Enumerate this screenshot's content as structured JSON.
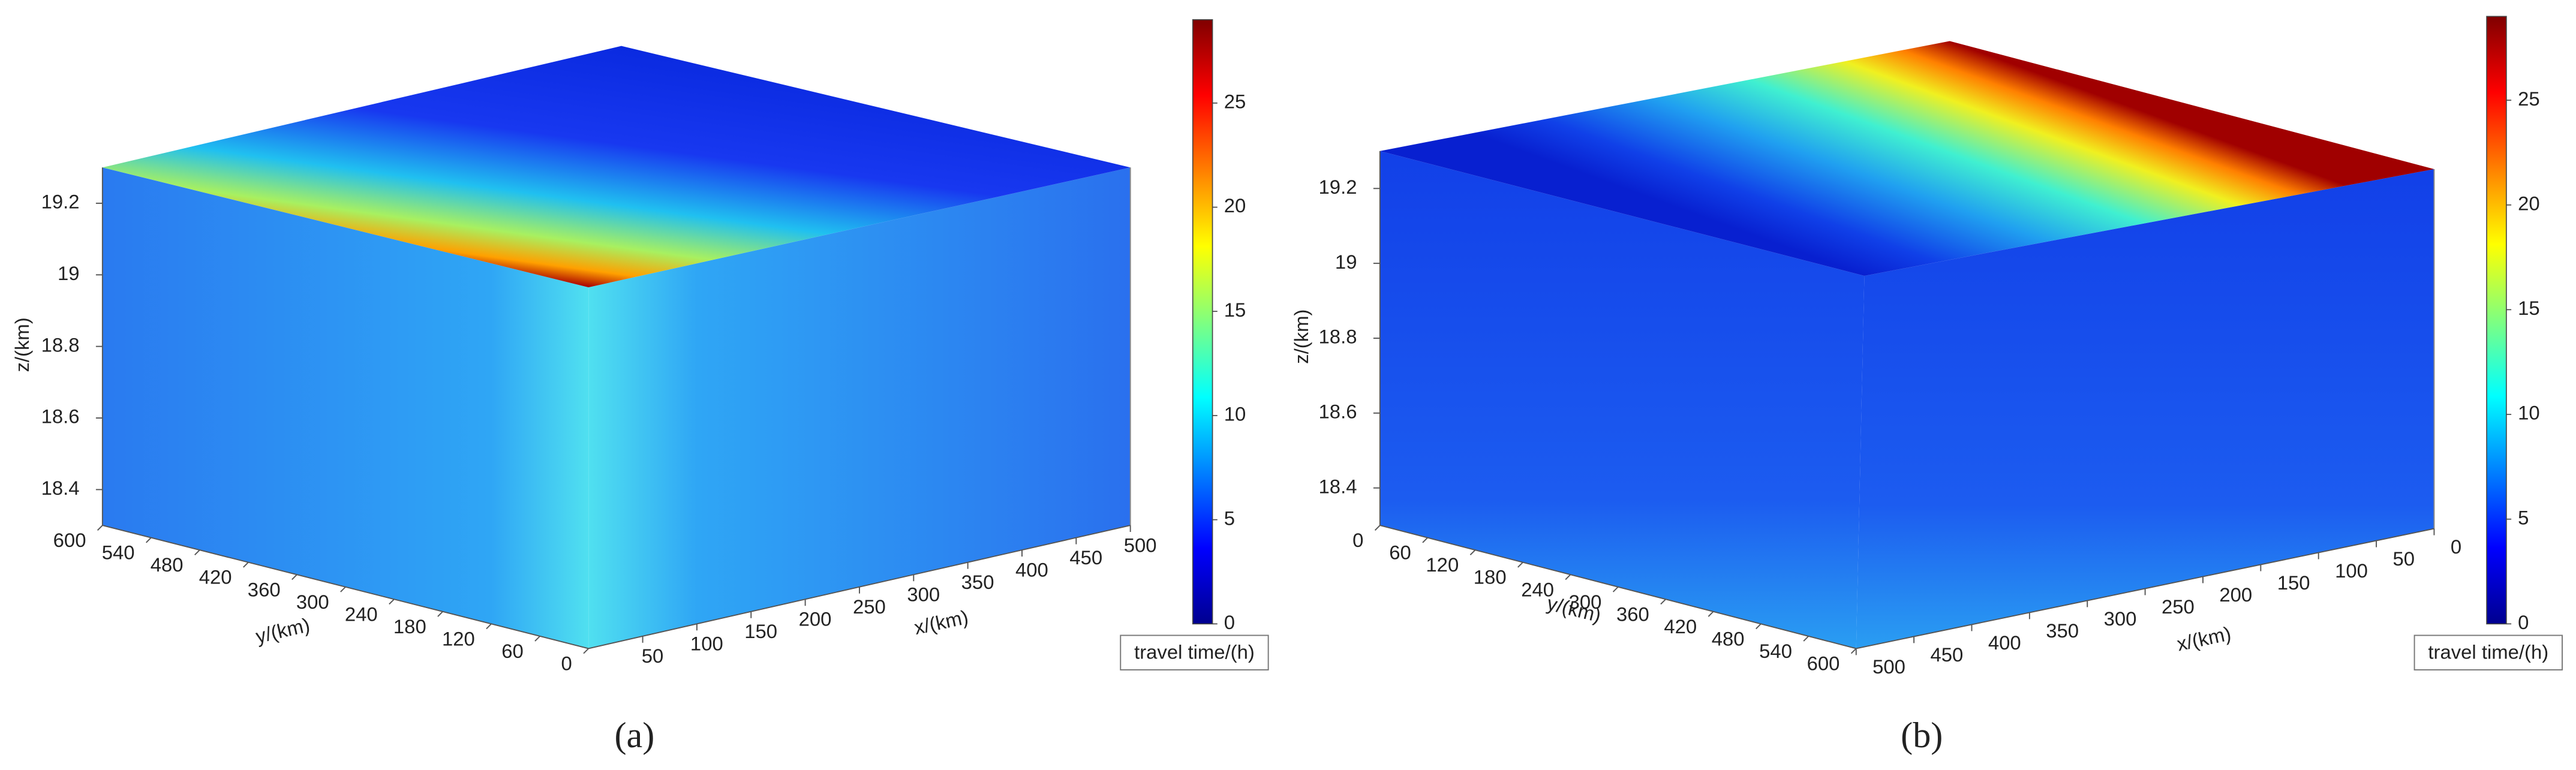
{
  "chart_data": [
    {
      "type": "surface3d",
      "title": "(a)",
      "xlabel": "x/(km)",
      "ylabel": "y/(km)",
      "zlabel": "z/(km)",
      "xlim": [
        0,
        500
      ],
      "xticks": [
        50,
        100,
        150,
        200,
        250,
        300,
        350,
        400,
        450,
        500
      ],
      "ylim": [
        0,
        600
      ],
      "yticks": [
        0,
        60,
        120,
        180,
        240,
        300,
        360,
        420,
        480,
        540,
        600
      ],
      "zlim": [
        18.3,
        19.3
      ],
      "zticks": [
        18.4,
        18.6,
        18.8,
        19,
        19.2
      ],
      "colorbar": {
        "label": "travel time/(h)",
        "lim": [
          0,
          29
        ],
        "ticks": [
          0,
          5,
          10,
          15,
          20,
          25
        ]
      }
    },
    {
      "type": "surface3d",
      "title": "(b)",
      "xlabel": "x/(km)",
      "ylabel": "y/(km)",
      "zlabel": "z/(km)",
      "xlim": [
        0,
        500
      ],
      "xticks": [
        0,
        50,
        100,
        150,
        200,
        250,
        300,
        350,
        400,
        450,
        500
      ],
      "ylim": [
        0,
        600
      ],
      "yticks": [
        0,
        60,
        120,
        180,
        240,
        300,
        360,
        420,
        480,
        540,
        600
      ],
      "zlim": [
        18.3,
        19.3
      ],
      "zticks": [
        18.4,
        18.6,
        18.8,
        19,
        19.2
      ],
      "colorbar": {
        "label": "travel time/(h)",
        "lim": [
          0,
          29
        ],
        "ticks": [
          0,
          5,
          10,
          15,
          20,
          25
        ]
      }
    }
  ]
}
